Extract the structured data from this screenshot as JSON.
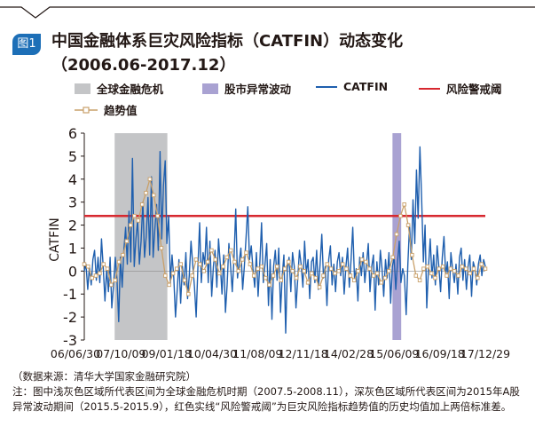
{
  "header": {
    "badge": "图1",
    "title_line1": "中国金融体系巨灾风险指标（CATFIN）动态变化",
    "title_line2": "（2006.06-2017.12）"
  },
  "legend": {
    "global_crisis": "全球金融危机",
    "stock_turmoil": "股市异常波动",
    "catfin": "CATFIN",
    "warning": "风险警戒阈",
    "trend": "趋势值"
  },
  "colors": {
    "catfin": "#1f5fae",
    "warning": "#d7282f",
    "trend": "#c9a06a",
    "global_crisis_band": "#c4c5c7",
    "stock_turmoil_band": "#a9a2d2",
    "badge": "#1d6fb7"
  },
  "footer": {
    "source": "（数据来源：清华大学国家金融研究院）",
    "note": "注：图中浅灰色区域所代表区间为全球金融危机时期（2007.5-2008.11），深灰色区域所代表区间为2015年A股异常波动期间（2015.5-2015.9），红色实线“风险警戒阈”为巨灾风险指标趋势值的历史均值加上两倍标准差。"
  },
  "chart_data": {
    "type": "line",
    "title": "",
    "xlabel": "",
    "ylabel": "CATFIN",
    "ylim": [
      -3,
      6
    ],
    "yticks": [
      "6",
      "5",
      "4",
      "3",
      "2",
      "1",
      "0",
      "-1",
      "-2",
      "-3"
    ],
    "xticks": [
      "06/06/30",
      "07/10/09",
      "09/01/18",
      "10/04/30",
      "11/08/09",
      "12/11/18",
      "14/02/28",
      "15/06/09",
      "16/09/18",
      "17/12/29"
    ],
    "xrange": [
      "2006-06",
      "2017-12"
    ],
    "warning_threshold": 2.4,
    "shaded_periods": [
      {
        "legend": "全球金融危机",
        "start": 2007.37,
        "end": 2008.88
      },
      {
        "legend": "股市异常波动",
        "start": 2015.33,
        "end": 2015.58
      }
    ],
    "series": [
      {
        "name": "CATFIN",
        "x_start": 2006.5,
        "x_end": 2017.99,
        "values": [
          0.0,
          0.3,
          -0.8,
          0.2,
          -0.6,
          0.5,
          0.9,
          -0.4,
          0.6,
          -0.5,
          1.4,
          0.2,
          -1.3,
          0.1,
          -0.9,
          0.6,
          -1.6,
          -0.6,
          0.6,
          -0.4,
          -2.2,
          0.6,
          -0.7,
          0.9,
          1.9,
          0.3,
          2.6,
          0.4,
          4.9,
          0.2,
          1.4,
          2.2,
          0.3,
          1.3,
          3.0,
          0.6,
          1.5,
          3.2,
          0.7,
          4.1,
          0.6,
          1.8,
          2.9,
          0.9,
          5.2,
          1.4,
          3.7,
          4.8,
          1.2,
          2.4,
          -0.5,
          0.7,
          -0.3,
          -2.0,
          -0.8,
          0.5,
          -1.4,
          0.2,
          -0.6,
          0.8,
          -1.2,
          -0.2,
          1.3,
          0.3,
          -0.7,
          -2.0,
          0.1,
          2.1,
          -0.5,
          0.8,
          0.3,
          1.9,
          -0.5,
          1.3,
          -1.1,
          0.2,
          0.9,
          -0.7,
          1.4,
          0.3,
          -1.0,
          0.7,
          -1.8,
          -0.6,
          1.2,
          0.2,
          -0.9,
          0.6,
          2.7,
          -0.3,
          0.4,
          1.0,
          -0.8,
          0.2,
          1.5,
          2.8,
          0.5,
          1.1,
          0.1,
          -0.7,
          0.8,
          -1.1,
          0.4,
          2.1,
          -0.5,
          0.3,
          1.2,
          -1.5,
          0.5,
          -2.1,
          0.2,
          0.9,
          -0.4,
          1.0,
          -1.8,
          -0.2,
          0.7,
          -2.7,
          0.1,
          0.6,
          -0.9,
          0.8,
          0.2,
          -1.6,
          -0.4,
          0.9,
          0.3,
          -0.7,
          1.3,
          -0.1,
          0.5,
          -1.2,
          0.4,
          0.6,
          -0.5,
          0.9,
          -0.8,
          0.3,
          1.6,
          -0.3,
          0.2,
          -1.5,
          0.5,
          1.1,
          -0.6,
          0.3,
          -0.9,
          0.4,
          0.8,
          -0.2,
          0.6,
          -1.0,
          0.2,
          1.0,
          -0.7,
          0.5,
          1.9,
          -0.4,
          0.1,
          -1.3,
          0.6,
          -0.2,
          0.8,
          -0.5,
          0.3,
          1.2,
          -0.9,
          0.2,
          0.7,
          -1.7,
          0.4,
          -0.6,
          0.9,
          0.1,
          -1.1,
          0.5,
          -0.3,
          0.8,
          -1.4,
          0.2,
          0.6,
          -0.8,
          0.4,
          1.3,
          -0.5,
          0.1,
          -0.2,
          -1.9,
          0.3,
          2.0,
          0.5,
          3.1,
          1.2,
          4.4,
          2.3,
          5.4,
          3.2,
          0.4,
          2.0,
          -1.6,
          0.2,
          1.4,
          -0.3,
          0.7,
          -0.6,
          1.1,
          0.2,
          -0.9,
          0.6,
          1.5,
          -0.2,
          0.4,
          -1.2,
          0.8,
          0.1,
          -0.5,
          0.3,
          -1.0,
          0.6,
          1.0,
          -0.4,
          0.5,
          -0.8,
          0.2,
          0.7,
          -1.1,
          0.4,
          0.1,
          -0.6,
          0.3,
          0.7,
          -0.2,
          0.5,
          0.2
        ]
      },
      {
        "name": "趋势值",
        "x_start": 2006.5,
        "x_end": 2017.99,
        "values": [
          0.3,
          0.2,
          -0.3,
          -0.2,
          -0.1,
          0.3,
          0.1,
          -0.6,
          -0.4,
          0.4,
          0.7,
          1.3,
          2.0,
          2.4,
          2.2,
          2.9,
          3.4,
          4.0,
          3.3,
          2.4,
          1.0,
          -0.2,
          -0.6,
          -0.1,
          0.1,
          0.3,
          -0.4,
          -1.0,
          -0.2,
          0.5,
          0.3,
          0.0,
          0.4,
          0.9,
          0.5,
          -0.1,
          0.2,
          0.6,
          0.9,
          0.4,
          0.0,
          0.5,
          0.8,
          0.3,
          -0.2,
          0.1,
          0.2,
          -0.3,
          -0.6,
          -0.2,
          0.2,
          -0.4,
          0.1,
          0.4,
          0.0,
          -0.3,
          0.2,
          0.0,
          -0.5,
          -0.1,
          -0.3,
          -0.7,
          -0.2,
          0.3,
          0.1,
          -0.1,
          0.0,
          0.3,
          0.1,
          -0.2,
          -0.4,
          0.0,
          0.5,
          0.4,
          0.1,
          -0.2,
          -0.1,
          -0.5,
          -0.3,
          0.0,
          0.6,
          1.6,
          2.4,
          2.9,
          2.0,
          0.7,
          -0.2,
          -0.4,
          0.1,
          0.2,
          -0.1,
          -0.3,
          0.1,
          0.2,
          -0.2,
          0.1,
          0.0,
          -0.2,
          0.2,
          0.1,
          -0.1,
          0.1,
          -0.3,
          0.3,
          0.1
        ]
      }
    ]
  }
}
